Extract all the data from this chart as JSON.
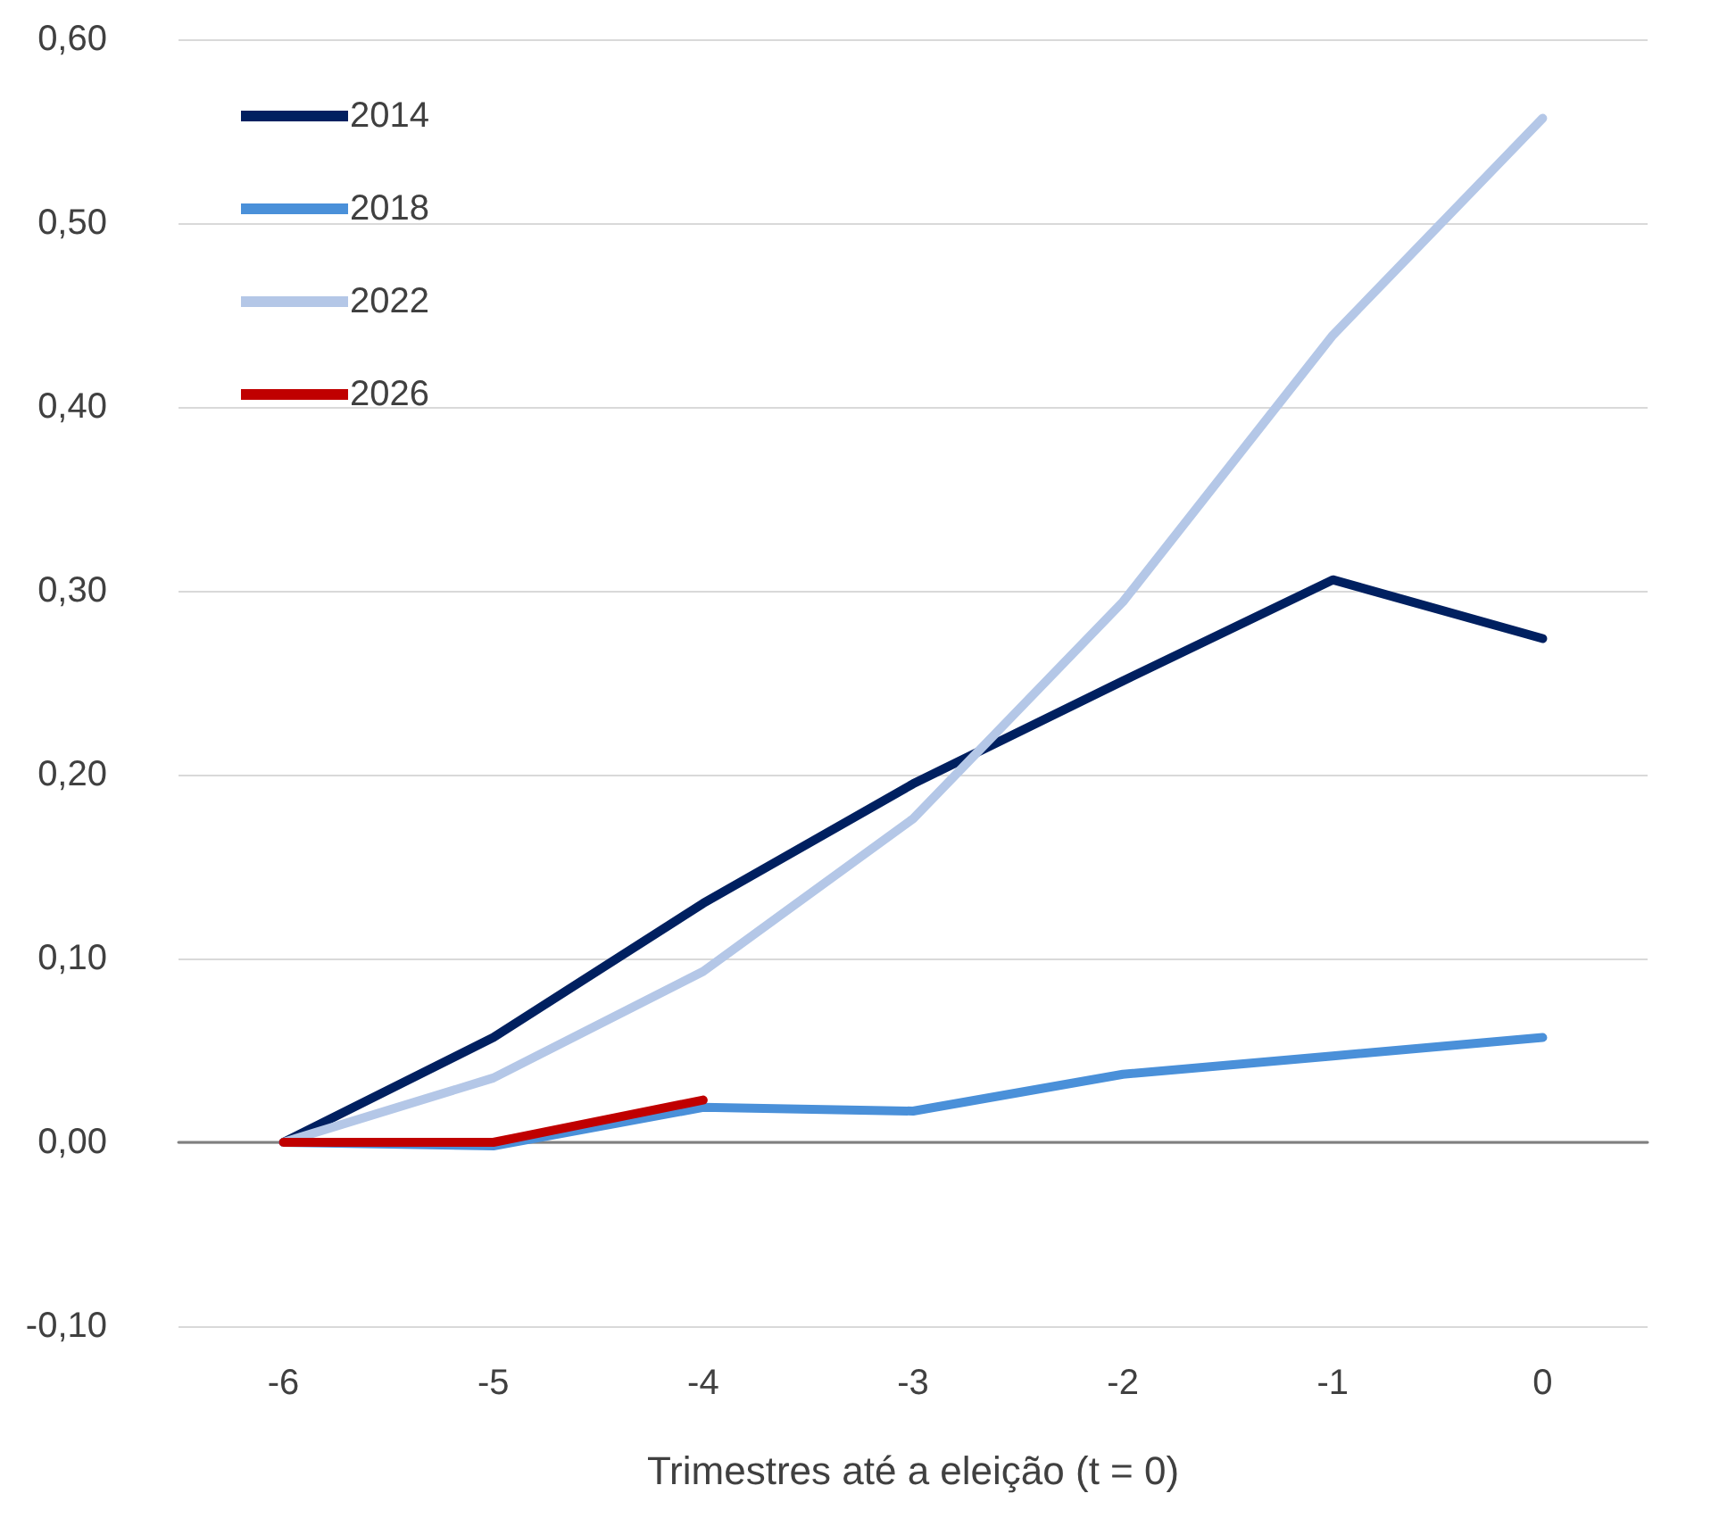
{
  "chart_data": {
    "type": "line",
    "xlabel": "Trimestres até a eleição (t = 0)",
    "categories": [
      "-6",
      "-5",
      "-4",
      "-3",
      "-2",
      "-1",
      "0"
    ],
    "series": [
      {
        "name": "2014",
        "color": "#002060",
        "values": [
          0,
          0.057,
          0.13,
          0.195,
          0.251,
          0.306,
          0.274
        ]
      },
      {
        "name": "2018",
        "color": "#4a90d9",
        "values": [
          0,
          -0.002,
          0.019,
          0.017,
          0.037,
          0.047,
          0.057
        ]
      },
      {
        "name": "2022",
        "color": "#b4c7e7",
        "values": [
          0,
          0.035,
          0.093,
          0.176,
          0.294,
          0.439,
          0.557
        ]
      },
      {
        "name": "2026",
        "color": "#c00000",
        "values": [
          0,
          0,
          0.023,
          null,
          null,
          null,
          null
        ]
      }
    ],
    "ylim": [
      -0.1,
      0.6
    ],
    "yticks": [
      {
        "value": -0.1,
        "label": "-0,10"
      },
      {
        "value": 0,
        "label": "0,00"
      },
      {
        "value": 0.1,
        "label": "0,10"
      },
      {
        "value": 0.2,
        "label": "0,20"
      },
      {
        "value": 0.3,
        "label": "0,30"
      },
      {
        "value": 0.4,
        "label": "0,40"
      },
      {
        "value": 0.5,
        "label": "0,50"
      },
      {
        "value": 0.6,
        "label": "0,60"
      }
    ],
    "grid": "y",
    "legend": "top left",
    "marker": "none",
    "line_style": "solid"
  }
}
